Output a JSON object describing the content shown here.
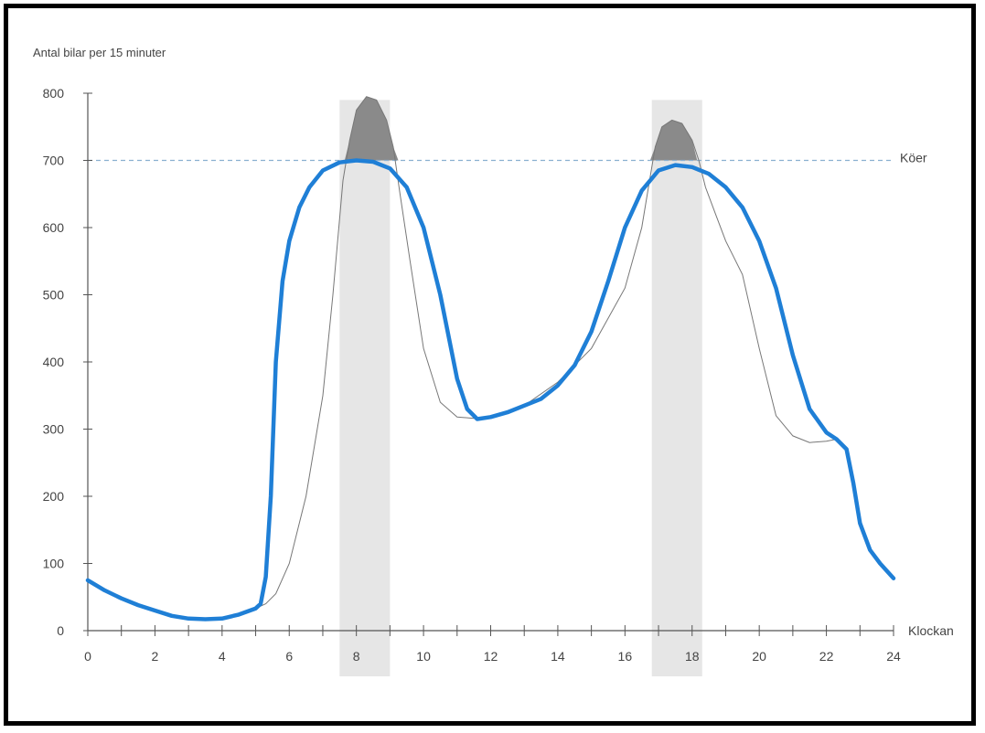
{
  "chart_data": {
    "type": "line",
    "ylabel": "Antal bilar per 15 minuter",
    "xlabel": "Klockan",
    "xlim": [
      0,
      24
    ],
    "ylim": [
      0,
      800
    ],
    "x_ticks": [
      0,
      2,
      4,
      6,
      8,
      10,
      12,
      14,
      16,
      18,
      20,
      22,
      24
    ],
    "y_ticks": [
      0,
      100,
      200,
      300,
      400,
      500,
      600,
      700,
      800
    ],
    "threshold": {
      "value": 700,
      "label": "Köer",
      "color": "#8ab0d0"
    },
    "shaded_ranges": [
      {
        "from": 7.5,
        "to": 9
      },
      {
        "from": 16.8,
        "to": 18.3
      }
    ],
    "colors": {
      "blue": "#1f7fd6",
      "thin": "#777777",
      "peak": "#8a8a8a",
      "band": "#e6e6e6",
      "axis": "#555555"
    },
    "series": [
      {
        "x": [
          0,
          0.5,
          1,
          1.5,
          2,
          2.5,
          3,
          3.5,
          4,
          4.5,
          5,
          5.15,
          5.3,
          5.45,
          5.6,
          5.8,
          6,
          6.3,
          6.6,
          7,
          7.5,
          8,
          8.5,
          9,
          9.5,
          10,
          10.5,
          11,
          11.3,
          11.6,
          12,
          12.5,
          13,
          13.5,
          14,
          14.5,
          15,
          15.5,
          16,
          16.5,
          17,
          17.5,
          18,
          18.5,
          19,
          19.5,
          20,
          20.5,
          21,
          21.5,
          22,
          22.3,
          22.6,
          22.8,
          23,
          23.3,
          23.6,
          24
        ],
        "y": [
          75,
          60,
          48,
          38,
          30,
          22,
          18,
          17,
          18,
          24,
          33,
          40,
          80,
          200,
          400,
          520,
          580,
          630,
          660,
          685,
          697,
          700,
          698,
          688,
          660,
          600,
          500,
          375,
          330,
          315,
          318,
          325,
          335,
          345,
          365,
          395,
          445,
          520,
          600,
          655,
          685,
          693,
          690,
          680,
          660,
          630,
          580,
          510,
          410,
          330,
          295,
          285,
          270,
          220,
          160,
          120,
          100,
          78
        ]
      },
      {
        "x": [
          0,
          1,
          2,
          3,
          4,
          5,
          5.3,
          5.6,
          6,
          6.5,
          7,
          7.3,
          7.6,
          7.8,
          8,
          8.3,
          8.6,
          8.9,
          9.1,
          9.3,
          9.6,
          10,
          10.5,
          11,
          11.5,
          12,
          12.5,
          13,
          14,
          15,
          16,
          16.5,
          16.7,
          16.9,
          17.1,
          17.4,
          17.7,
          18,
          18.2,
          18.4,
          18.7,
          19,
          19.5,
          20,
          20.5,
          21,
          21.5,
          22,
          22.3,
          22.6,
          22.8,
          23,
          23.3,
          23.6,
          24
        ],
        "y": [
          75,
          48,
          30,
          18,
          18,
          33,
          40,
          55,
          100,
          200,
          350,
          500,
          670,
          730,
          775,
          795,
          790,
          760,
          720,
          650,
          550,
          420,
          340,
          318,
          316,
          318,
          325,
          335,
          370,
          420,
          510,
          600,
          660,
          720,
          750,
          760,
          755,
          730,
          700,
          660,
          620,
          580,
          530,
          420,
          320,
          290,
          280,
          282,
          285,
          270,
          220,
          160,
          120,
          100,
          78
        ]
      }
    ]
  }
}
